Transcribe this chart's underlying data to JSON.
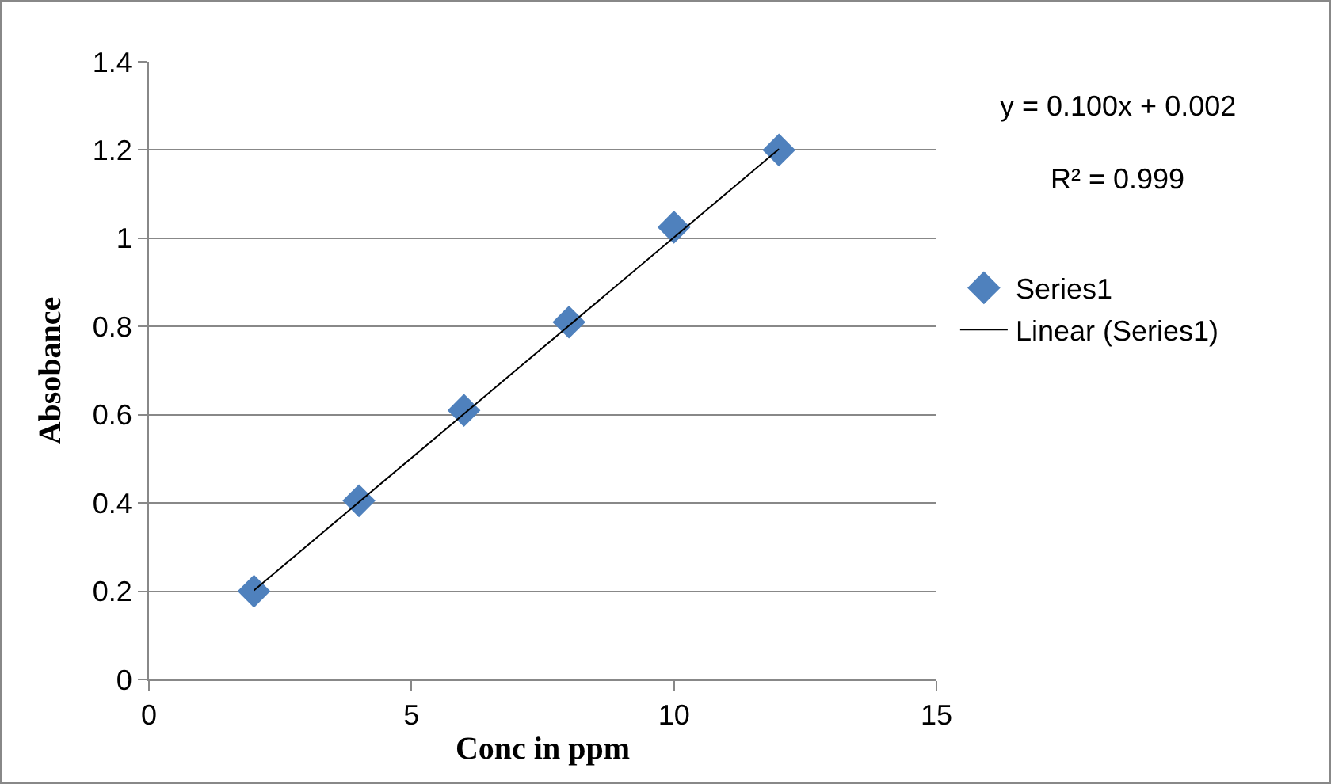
{
  "chart_data": {
    "type": "scatter",
    "xlabel": "Conc in ppm",
    "ylabel": "Absobance",
    "x": [
      2,
      4,
      6,
      8,
      10,
      12
    ],
    "series": [
      {
        "name": "Series1",
        "marker": "diamond",
        "color": "#4f81bd",
        "values": [
          0.2,
          0.405,
          0.61,
          0.81,
          1.025,
          1.2
        ]
      },
      {
        "name": "Linear (Series1)",
        "type": "line",
        "marker": "none",
        "color": "#000000",
        "x": [
          2,
          12
        ],
        "values": [
          0.202,
          1.202
        ]
      }
    ],
    "xlim": [
      0,
      15
    ],
    "xticks": [
      0,
      5,
      10,
      15
    ],
    "ylim": [
      0,
      1.4
    ],
    "yticks": [
      0,
      0.2,
      0.4,
      0.6,
      0.8,
      1,
      1.2,
      1.4
    ],
    "grid": "y",
    "legend": "right",
    "annotations": [
      "y = 0.100x + 0.002",
      "R² = 0.999"
    ]
  }
}
